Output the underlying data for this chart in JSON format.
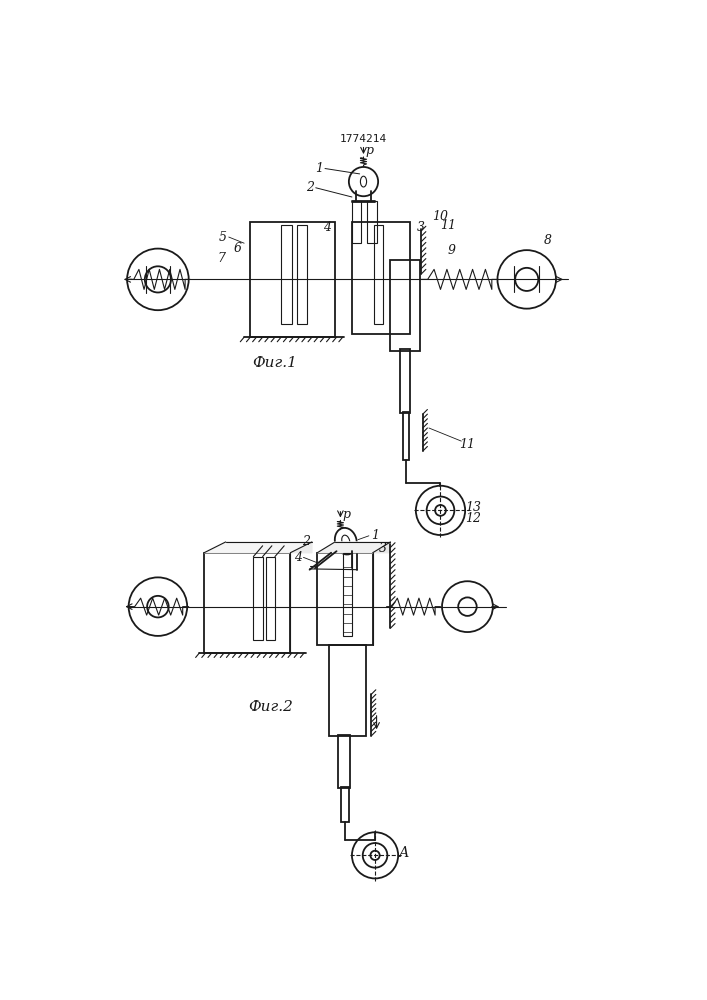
{
  "patent_number": "1774214",
  "fig1_label": "Фиг.1",
  "fig2_label": "Фиг.2",
  "bg_color": "#ffffff",
  "line_color": "#1a1a1a",
  "lw": 0.8,
  "lw2": 1.3,
  "fig_width": 7.07,
  "fig_height": 10.0
}
